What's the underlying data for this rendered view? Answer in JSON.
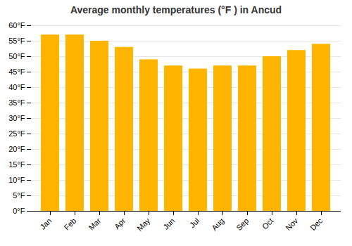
{
  "chart_data": {
    "type": "bar",
    "title": "Average monthly temperatures (°F ) in Ancud",
    "categories": [
      "Jan",
      "Feb",
      "Mar",
      "Apr",
      "May",
      "Jun",
      "Jul",
      "Aug",
      "Sep",
      "Oct",
      "Nov",
      "Dec"
    ],
    "values": [
      57,
      57,
      55,
      53,
      49,
      47,
      46,
      47,
      47,
      50,
      52,
      54
    ],
    "color": "#FFB400",
    "ylim": [
      0,
      60
    ],
    "yticks": [
      {
        "value": 0,
        "label": "0°F"
      },
      {
        "value": 5,
        "label": "5°F"
      },
      {
        "value": 10,
        "label": "10°F"
      },
      {
        "value": 15,
        "label": "15°F"
      },
      {
        "value": 20,
        "label": "20°F"
      },
      {
        "value": 25,
        "label": "25°F"
      },
      {
        "value": 30,
        "label": "30°F"
      },
      {
        "value": 35,
        "label": "35°F"
      },
      {
        "value": 40,
        "label": "40°F"
      },
      {
        "value": 45,
        "label": "45°F"
      },
      {
        "value": 50,
        "label": "50°F"
      },
      {
        "value": 55,
        "label": "55°F"
      },
      {
        "value": 60,
        "label": "60°F"
      }
    ],
    "grid": true
  }
}
